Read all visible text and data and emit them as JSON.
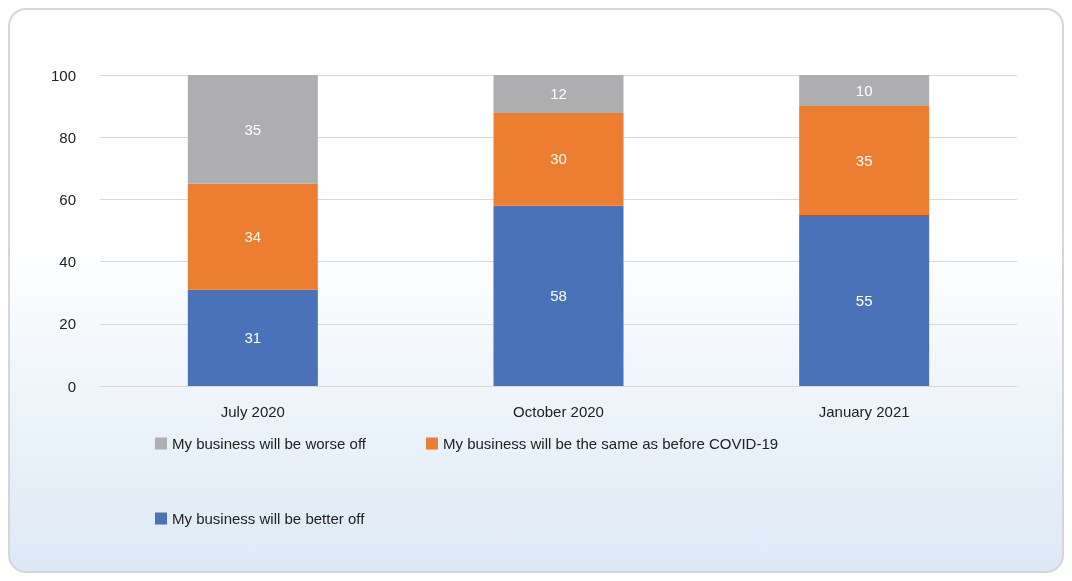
{
  "chart_data": {
    "type": "bar",
    "stacked": true,
    "categories": [
      "July 2020",
      "October 2020",
      "January 2021"
    ],
    "series": [
      {
        "name": "My business will be better off",
        "color": "#4a72b8",
        "values": [
          31,
          58,
          55
        ]
      },
      {
        "name": "My business will be the same as before COVID-19",
        "color": "#ed7d31",
        "values": [
          34,
          30,
          35
        ]
      },
      {
        "name": "My business will be worse off",
        "color": "#aeaeb0",
        "values": [
          35,
          12,
          10
        ]
      }
    ],
    "ylim": [
      0,
      100
    ],
    "yticks": [
      0,
      20,
      40,
      60,
      80,
      100
    ],
    "grid": "y",
    "data_labels": true,
    "legend": "bottom"
  }
}
